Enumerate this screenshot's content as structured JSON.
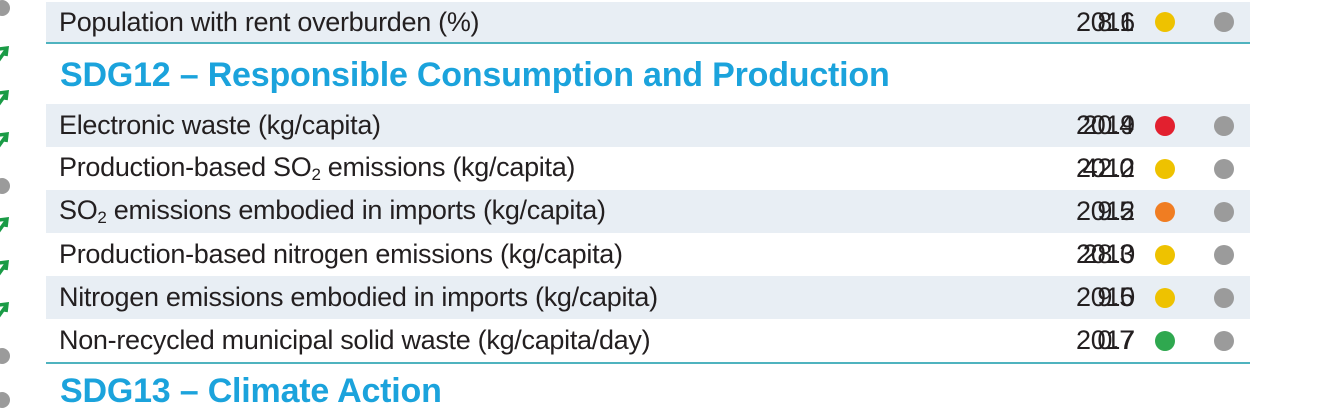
{
  "top_row": {
    "label": "Population with rent overburden (%)",
    "value": "8.1",
    "year": "2016",
    "rating_color": "#eec200",
    "trend_color": "#9b9b9b"
  },
  "sdg12": {
    "heading": "SDG12 – Responsible Consumption and Production",
    "rows": [
      {
        "label": "Electronic waste (kg/capita)",
        "value": "20.4",
        "year": "2019",
        "rating_color": "#e2202f"
      },
      {
        "label_pre": "Production-based SO",
        "label_sub": "2",
        "label_post": " emissions (kg/capita)",
        "value": "42.0",
        "year": "2012",
        "rating_color": "#eec200"
      },
      {
        "label_pre": "SO",
        "label_sub": "2",
        "label_post": " emissions embodied in imports (kg/capita)",
        "value": "9.5",
        "year": "2012",
        "rating_color": "#f07d22"
      },
      {
        "label": "Production-based nitrogen emissions (kg/capita)",
        "value": "28.3",
        "year": "2010",
        "rating_color": "#eec200"
      },
      {
        "label": "Nitrogen emissions embodied in imports (kg/capita)",
        "value": "9.5",
        "year": "2010",
        "rating_color": "#eec200"
      },
      {
        "label": "Non-recycled municipal solid waste (kg/capita/day)",
        "value": "0.7",
        "year": "2017",
        "rating_color": "#2fa84f"
      }
    ]
  },
  "sdg13": {
    "heading": "SDG13 – Climate Action"
  },
  "colors": {
    "heading": "#1ba3dc",
    "rule": "#4fb3bf",
    "shade": "#e8eef4",
    "trend_grey": "#9b9b9b",
    "arrow_green": "#1a9b46"
  },
  "left_markers": [
    "dot",
    "arrow-up-icon",
    "arrow-up-icon",
    "arrow-up-icon",
    "dot",
    "arrow-up-icon",
    "arrow-up-icon",
    "arrow-up-icon",
    "dot",
    "dot"
  ]
}
